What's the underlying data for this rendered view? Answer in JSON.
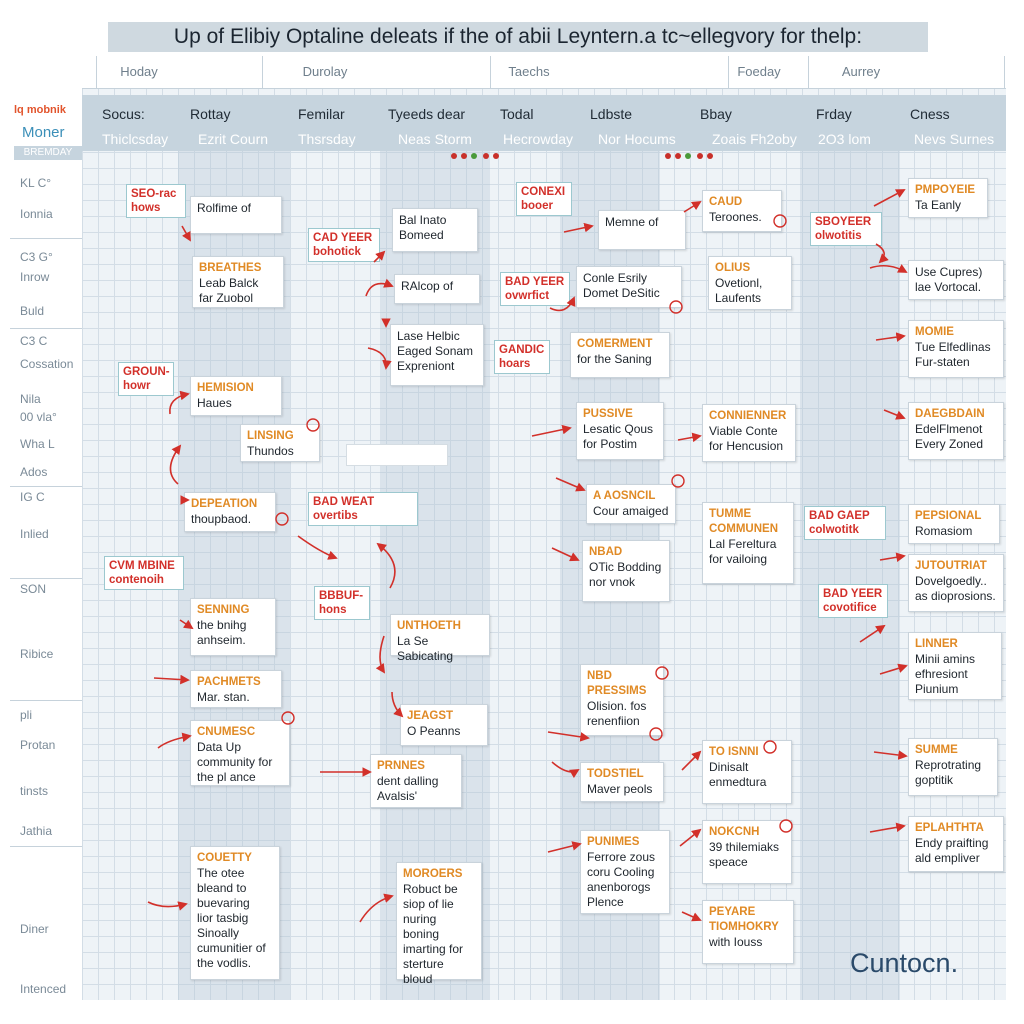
{
  "title": "Up of Elibiy Optaline deleats if the of abii Leyntern.a tc~ellegvory for thelp:",
  "top_headers": [
    "Hoday",
    "Durolay",
    "Taechs",
    "Foeday",
    "Aurrey"
  ],
  "columns": [
    {
      "head": "Socus:",
      "sub": "Thiclcsday"
    },
    {
      "head": "Rottay",
      "sub": "Ezrit Courn"
    },
    {
      "head": "Femilar",
      "sub": "Thsrsday"
    },
    {
      "head": "Tyeeds dear",
      "sub": "Neas Storm"
    },
    {
      "head": "Todal",
      "sub": "Hecrowday"
    },
    {
      "head": "Ldbste",
      "sub": "Nor Hocums"
    },
    {
      "head": "Bbay",
      "sub": "Zoais Fh2oby"
    },
    {
      "head": "Frday",
      "sub": "2O3 lom"
    },
    {
      "head": "Cness",
      "sub": "Nevs Surnes"
    }
  ],
  "brand": {
    "line1": "lq mobnik",
    "line2": "Moner",
    "line3": "BREMDAY"
  },
  "row_labels": [
    "KL C°",
    "Ionnia",
    "C3 G°",
    "Inrow",
    "Buld",
    "C3 C",
    "Cossation",
    "Nila",
    "00 vla°",
    "Wha L",
    "Ados",
    "IG C",
    "Inlied",
    "SON",
    "Ribice",
    "pli",
    "Protan",
    "tinsts",
    "Jathia",
    "Diner",
    "Intenced"
  ],
  "cards": [
    {
      "label": "",
      "text": "Rolfime of"
    },
    {
      "label": "",
      "text": "Bal Inato\nBomeed"
    },
    {
      "label": "BREATHES",
      "text": "Leab Balck\nfar Zuobol"
    },
    {
      "label": "",
      "text": "RAlcop of"
    },
    {
      "label": "",
      "text": "Lase Helbic\nEaged Sonam\nExpreniont"
    },
    {
      "label": "HEMISION",
      "text": "Haues"
    },
    {
      "label": "LINSING",
      "text": "Thundos"
    },
    {
      "label": "DEPEATION",
      "text": "thoupbaod."
    },
    {
      "label": "SENNING",
      "text": "the bnihg\nanhseim."
    },
    {
      "label": "UNTHOETH",
      "text": "La Se Sabicating"
    },
    {
      "label": "PACHMETS",
      "text": "Mar. stan."
    },
    {
      "label": "JEAGST",
      "text": "O Peanns"
    },
    {
      "label": "CNUMESC",
      "text": "Data Up\ncommunity for\nthe pl ance"
    },
    {
      "label": "PRNNES",
      "text": "dent dalling\nAvalsis'"
    },
    {
      "label": "COUETTY",
      "text": "The otee\nbleand to\nbuevaring\nlior tasbig\nSinoally\ncumunitier of\nthe vodlis."
    },
    {
      "label": "MOROERS",
      "text": "Robuct be\nsiop of lie\nnuring boning\nimarting for\nsterture\nbloud"
    },
    {
      "label": "",
      "text": "Memne of"
    },
    {
      "label": "",
      "text": "Conle Esrily\nDomet DeSitic"
    },
    {
      "label": "COMERMENT",
      "text": "for the Saning"
    },
    {
      "label": "PUSSIVE",
      "text": "Lesatic Qous\nfor Postim"
    },
    {
      "label": "A AOSNCIL",
      "text": "Cour amaiged"
    },
    {
      "label": "NBAD",
      "text": "OTic Bodding\nnor vnok"
    },
    {
      "label": "NBD\nPRESSIMS",
      "text": "Olision. fos\nrenenfiion"
    },
    {
      "label": "TODSTIEL",
      "text": "Maver peols"
    },
    {
      "label": "PUNIMES",
      "text": "Ferrore zous\ncoru Cooling\nanenborogs\nPlence"
    },
    {
      "label": "CAUD",
      "text": "Teroones."
    },
    {
      "label": "OLIUS",
      "text": "Ovetionl,\nLaufents"
    },
    {
      "label": "CONNIENNER",
      "text": "Viable Conte\nfor Hencusion"
    },
    {
      "label": "TUMME\nCOMMUNEN",
      "text": "Lal Fereltura\nfor vailoing"
    },
    {
      "label": "TO ISNNI",
      "text": "Dinisalt\nenmedtura"
    },
    {
      "label": "NOKCNH",
      "text": "39 thilemiaks\nspeace"
    },
    {
      "label": "PEYARE\nTIOMHOKRY",
      "text": "with Iouss"
    },
    {
      "label": "PMPOYEIE",
      "text": "Ta Eanly"
    },
    {
      "label": "",
      "text": "Use Cupres)\nlae Vortocal."
    },
    {
      "label": "MOMIE",
      "text": "Tue Elfedlinas\nFur-staten"
    },
    {
      "label": "DAEGBDAIN",
      "text": "EdelFlmenot\nEvery Zoned"
    },
    {
      "label": "PEPSIONAL",
      "text": "Romasiom"
    },
    {
      "label": "JUTOUTRIAT",
      "text": "Dovelgoedly..\nas dioprosions."
    },
    {
      "label": "LINNER",
      "text": "Minii amins\nefhresiont\nPiunium"
    },
    {
      "label": "SUMME",
      "text": "Reprotrating\ngoptitik"
    },
    {
      "label": "EPLAHTHTA",
      "text": "Endy praifting\nald empliver"
    }
  ],
  "tags": [
    "SEO-rac\nhows",
    "CAD YEER\nbohotick",
    "BAD YEER\novwrfict",
    "CONEXI\nbooer",
    "GANDIC\nhoars",
    "GROUN-\nhowr",
    "BAD WEAT\novertibs",
    "CVM MBINE\ncontenoih",
    "BBBUF-\nhons",
    "SBOYEER\nolwotitis",
    "BAD GAEP\ncolwotitk",
    "BAD YEER\ncovotifice"
  ],
  "logo_text": "Cuntocn."
}
